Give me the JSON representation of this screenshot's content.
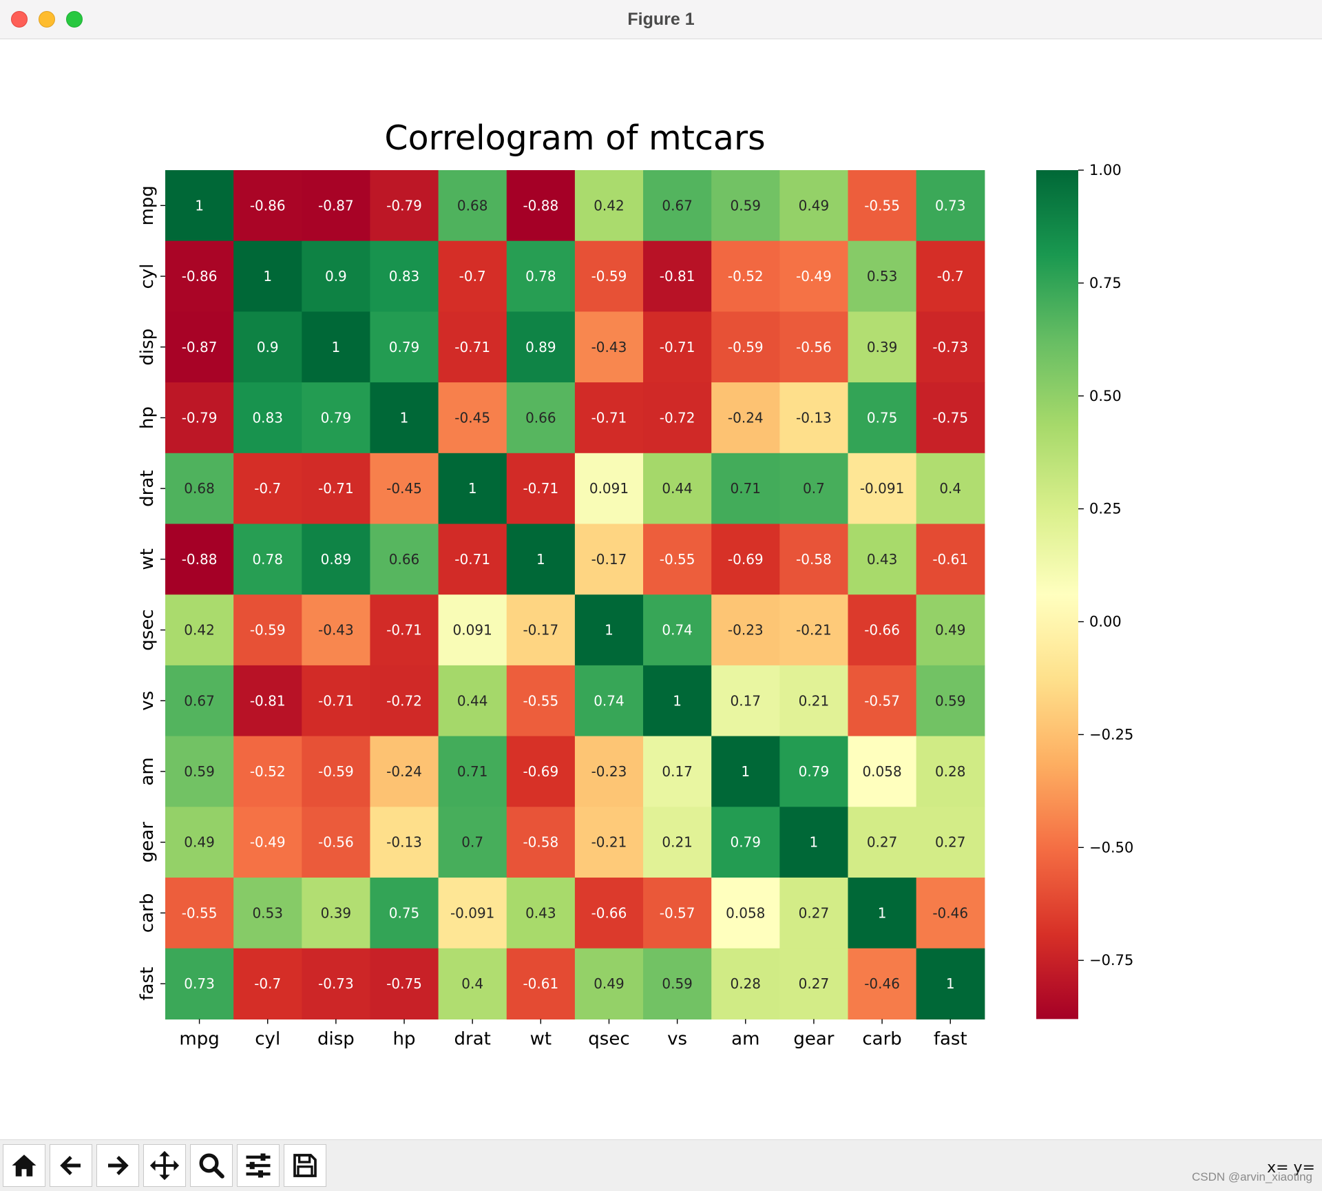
{
  "window": {
    "title": "Figure 1"
  },
  "toolbar": {
    "buttons": [
      {
        "name": "home-icon"
      },
      {
        "name": "back-icon"
      },
      {
        "name": "forward-icon"
      },
      {
        "name": "pan-icon"
      },
      {
        "name": "zoom-icon"
      },
      {
        "name": "configure-subplots-icon"
      },
      {
        "name": "save-icon"
      }
    ],
    "coords": "x= y=",
    "watermark": "CSDN @arvin_xiaoting"
  },
  "chart_data": {
    "type": "heatmap",
    "title": "Correlogram of mtcars",
    "xlabel": "",
    "ylabel": "",
    "colormap": "RdYlGn",
    "vmin": -0.88,
    "vmax": 1.0,
    "labels": [
      "mpg",
      "cyl",
      "disp",
      "hp",
      "drat",
      "wt",
      "qsec",
      "vs",
      "am",
      "gear",
      "carb",
      "fast"
    ],
    "matrix": [
      [
        1,
        -0.86,
        -0.87,
        -0.79,
        0.68,
        -0.88,
        0.42,
        0.67,
        0.59,
        0.49,
        -0.55,
        0.73
      ],
      [
        -0.86,
        1,
        0.9,
        0.83,
        -0.7,
        0.78,
        -0.59,
        -0.81,
        -0.52,
        -0.49,
        0.53,
        -0.7
      ],
      [
        -0.87,
        0.9,
        1,
        0.79,
        -0.71,
        0.89,
        -0.43,
        -0.71,
        -0.59,
        -0.56,
        0.39,
        -0.73
      ],
      [
        -0.79,
        0.83,
        0.79,
        1,
        -0.45,
        0.66,
        -0.71,
        -0.72,
        -0.24,
        -0.13,
        0.75,
        -0.75
      ],
      [
        0.68,
        -0.7,
        -0.71,
        -0.45,
        1,
        -0.71,
        0.091,
        0.44,
        0.71,
        0.7,
        -0.091,
        0.4
      ],
      [
        -0.88,
        0.78,
        0.89,
        0.66,
        -0.71,
        1,
        -0.17,
        -0.55,
        -0.69,
        -0.58,
        0.43,
        -0.61
      ],
      [
        0.42,
        -0.59,
        -0.43,
        -0.71,
        0.091,
        -0.17,
        1,
        0.74,
        -0.23,
        -0.21,
        -0.66,
        0.49
      ],
      [
        0.67,
        -0.81,
        -0.71,
        -0.72,
        0.44,
        -0.55,
        0.74,
        1,
        0.17,
        0.21,
        -0.57,
        0.59
      ],
      [
        0.59,
        -0.52,
        -0.59,
        -0.24,
        0.71,
        -0.69,
        -0.23,
        0.17,
        1,
        0.79,
        0.058,
        0.28
      ],
      [
        0.49,
        -0.49,
        -0.56,
        -0.13,
        0.7,
        -0.58,
        -0.21,
        0.21,
        0.79,
        1,
        0.27,
        0.27
      ],
      [
        -0.55,
        0.53,
        0.39,
        0.75,
        -0.091,
        0.43,
        -0.66,
        -0.57,
        0.058,
        0.27,
        1,
        -0.46
      ],
      [
        0.73,
        -0.7,
        -0.73,
        -0.75,
        0.4,
        -0.61,
        0.49,
        0.59,
        0.28,
        0.27,
        -0.46,
        1
      ]
    ],
    "colorbar": {
      "ticks": [
        1.0,
        0.75,
        0.5,
        0.25,
        0.0,
        -0.25,
        -0.5,
        -0.75
      ],
      "tick_labels": [
        "1.00",
        "0.75",
        "0.50",
        "0.25",
        "0.00",
        "−0.25",
        "−0.50",
        "−0.75"
      ]
    }
  }
}
